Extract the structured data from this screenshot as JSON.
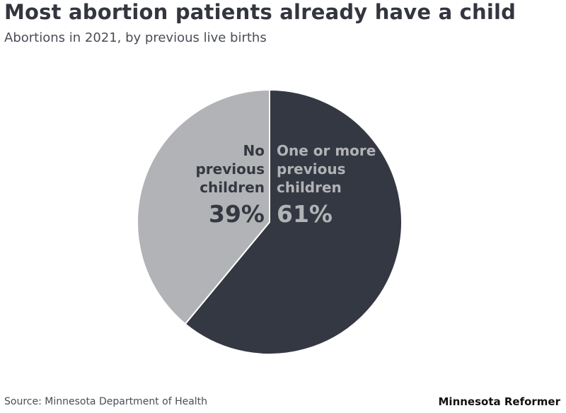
{
  "title": "Most abortion patients already have a child",
  "subtitle": "Abortions in 2021, by previous live births",
  "source": "Source: Minnesota Department of Health",
  "brand": "Minnesota Reformer",
  "chart_data": {
    "type": "pie",
    "title": "Most abortion patients already have a child",
    "subtitle": "Abortions in 2021, by previous live births",
    "slices": [
      {
        "label_lines": [
          "One or more",
          "previous",
          "children"
        ],
        "value": 61,
        "value_label": "61%",
        "color": "#343842",
        "label_color": "#b2b3b6"
      },
      {
        "label_lines": [
          "No",
          "previous",
          "children"
        ],
        "value": 39,
        "value_label": "39%",
        "color": "#b2b3b6",
        "label_color": "#343842"
      }
    ],
    "start": "12 o'clock",
    "direction": "clockwise",
    "legend": "none"
  }
}
